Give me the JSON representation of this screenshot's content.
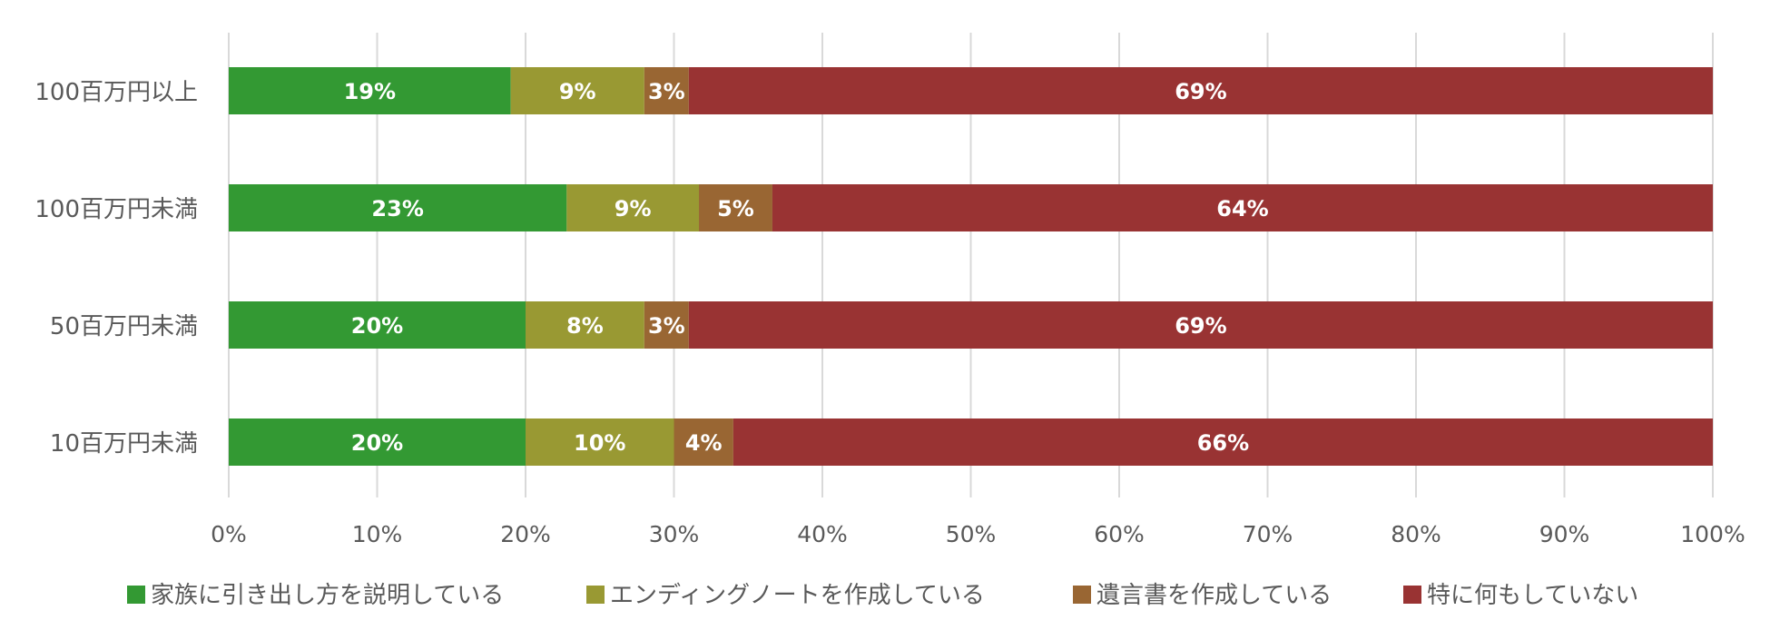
{
  "chart_data": {
    "type": "bar",
    "orientation": "horizontal",
    "stacked": "percent",
    "title": "",
    "xlabel": "",
    "ylabel": "",
    "categories": [
      "100百万円以上",
      "100百万円未満",
      "50百万円未満",
      "10百万円未満"
    ],
    "series": [
      {
        "name": "家族に引き出し方を説明している",
        "color": "#339933",
        "values": [
          19,
          23,
          20,
          20
        ],
        "labels": [
          "19%",
          "23%",
          "20%",
          "20%"
        ]
      },
      {
        "name": "エンディングノートを作成している",
        "color": "#999933",
        "values": [
          9,
          9,
          8,
          10
        ],
        "labels": [
          "9%",
          "9%",
          "8%",
          "10%"
        ]
      },
      {
        "name": "遺言書を作成している",
        "color": "#996633",
        "values": [
          3,
          5,
          3,
          4
        ],
        "labels": [
          "3%",
          "5%",
          "3%",
          "4%"
        ]
      },
      {
        "name": "特に何もしていない",
        "color": "#993333",
        "values": [
          69,
          64,
          69,
          66
        ],
        "labels": [
          "69%",
          "64%",
          "69%",
          "66%"
        ]
      }
    ],
    "xlim": [
      0,
      100
    ],
    "x_ticks": [
      "0%",
      "10%",
      "20%",
      "30%",
      "40%",
      "50%",
      "60%",
      "70%",
      "80%",
      "90%",
      "100%"
    ],
    "grid": "vertical",
    "legend": "bottom"
  }
}
